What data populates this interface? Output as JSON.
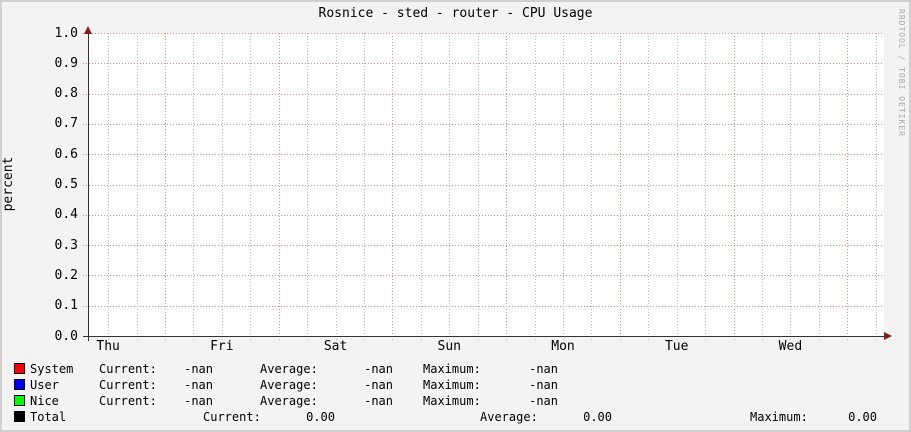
{
  "title": "Rosnice - sted - router - CPU Usage",
  "watermark": "RRDTOOL / TOBI OETIKER",
  "colors": {
    "background": "#f3f3f3",
    "border": "#d0d0d0",
    "plot_background": "#ffffff",
    "major_grid": "#ef8585",
    "minor_grid": "#b8b8b8",
    "axis": "#333333",
    "arrow": "#8b1c1c",
    "text": "#000000",
    "watermark_text": "#a9a9a9",
    "system": "#ff0000",
    "user": "#0000ff",
    "nice": "#00ff00",
    "total": "#000000"
  },
  "chart_data": {
    "type": "line",
    "title": "Rosnice - sted - router - CPU Usage",
    "ylabel": "percent",
    "xlabel": "",
    "ylim": [
      0.0,
      1.0
    ],
    "y_tick_step": 0.1,
    "y_tick_labels": [
      "1.0",
      "0.9",
      "0.8",
      "0.7",
      "0.6",
      "0.5",
      "0.4",
      "0.3",
      "0.2",
      "0.1",
      "0.0"
    ],
    "x_tick_labels": [
      "Thu",
      "Fri",
      "Sat",
      "Sun",
      "Mon",
      "Tue",
      "Wed"
    ],
    "x_span_days": 7,
    "minor_gridlines_per_day": 4,
    "grid": true,
    "legend_position": "bottom",
    "series": [
      {
        "name": "System",
        "color": "#ff0000",
        "values": []
      },
      {
        "name": "User",
        "color": "#0000ff",
        "values": []
      },
      {
        "name": "Nice",
        "color": "#00ff00",
        "values": []
      },
      {
        "name": "Total",
        "color": "#000000",
        "values": [
          0.0,
          0.0
        ]
      }
    ]
  },
  "legend": {
    "stat_labels": {
      "current": "Current:",
      "average": "Average:",
      "maximum": "Maximum:"
    },
    "rows": [
      {
        "type": "stats",
        "name": "System",
        "color": "#ff0000",
        "current": "-nan",
        "average": "-nan",
        "maximum": "-nan"
      },
      {
        "type": "stats",
        "name": "User",
        "color": "#0000ff",
        "current": "-nan",
        "average": "-nan",
        "maximum": "-nan"
      },
      {
        "type": "stats",
        "name": "Nice",
        "color": "#00ff00",
        "current": "-nan",
        "average": "-nan",
        "maximum": "-nan"
      },
      {
        "type": "total",
        "name": "Total",
        "color": "#000000",
        "current": "0.00",
        "average": "0.00",
        "maximum": "0.00"
      }
    ]
  }
}
